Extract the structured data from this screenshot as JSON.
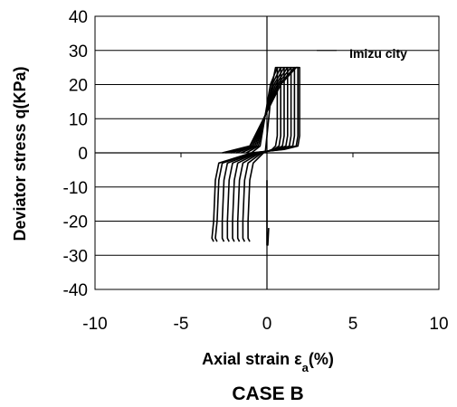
{
  "chart_data": {
    "type": "line",
    "xlabel_main": "Axial strain ε",
    "xlabel_sub": "a",
    "xlabel_tail": "(%)",
    "ylabel": "Deviator stress q(KPa)",
    "xlim": [
      -10,
      10
    ],
    "ylim": [
      -40,
      40
    ],
    "xticks": [
      "-10",
      "-5",
      "0",
      "5",
      "10"
    ],
    "yticks": [
      "40",
      "30",
      "20",
      "10",
      "0",
      "-10",
      "-20",
      "-30",
      "-40"
    ],
    "grid": "horizontal",
    "annotation": "Imizu city",
    "caption": "CASE B",
    "series_color": "#000000",
    "series": [
      {
        "x": [
          -0.1,
          0.0,
          0.3,
          0.5,
          0.6,
          0.6,
          0.6,
          0.5,
          0.3,
          -0.2,
          -0.8,
          -1.0,
          -1.1,
          -1.1,
          -1.0
        ],
        "y": [
          0,
          5,
          20,
          25,
          25,
          20,
          5,
          2,
          1,
          0,
          -3,
          -8,
          -20,
          -25,
          -26
        ]
      },
      {
        "x": [
          -0.9,
          -0.4,
          0.2,
          0.6,
          0.8,
          0.8,
          0.8,
          0.7,
          0.4,
          -0.3,
          -1.1,
          -1.3,
          -1.4,
          -1.4,
          -1.3
        ],
        "y": [
          0,
          2,
          20,
          25,
          25,
          20,
          5,
          2,
          1,
          0,
          -3,
          -8,
          -20,
          -25,
          -26
        ]
      },
      {
        "x": [
          -1.2,
          -0.5,
          0.3,
          0.8,
          1.0,
          1.0,
          1.0,
          0.9,
          0.5,
          -0.4,
          -1.4,
          -1.6,
          -1.7,
          -1.7,
          -1.6
        ],
        "y": [
          0,
          2,
          20,
          25,
          25,
          20,
          5,
          2,
          1,
          0,
          -3,
          -8,
          -20,
          -25,
          -26
        ]
      },
      {
        "x": [
          -1.5,
          -0.6,
          0.4,
          1.0,
          1.2,
          1.2,
          1.2,
          1.1,
          0.6,
          -0.5,
          -1.7,
          -1.9,
          -2.0,
          -2.0,
          -1.9
        ],
        "y": [
          0,
          2,
          20,
          25,
          25,
          20,
          5,
          2,
          1,
          0,
          -3,
          -8,
          -20,
          -25,
          -26
        ]
      },
      {
        "x": [
          -1.8,
          -0.7,
          0.5,
          1.2,
          1.4,
          1.4,
          1.4,
          1.3,
          0.7,
          -0.6,
          -2.0,
          -2.2,
          -2.3,
          -2.3,
          -2.2
        ],
        "y": [
          0,
          2,
          20,
          25,
          25,
          20,
          5,
          2,
          1,
          0,
          -3,
          -8,
          -20,
          -25,
          -26
        ]
      },
      {
        "x": [
          -2.1,
          -0.8,
          0.6,
          1.4,
          1.6,
          1.6,
          1.6,
          1.5,
          0.8,
          -0.7,
          -2.3,
          -2.5,
          -2.6,
          -2.6,
          -2.5
        ],
        "y": [
          0,
          2,
          20,
          25,
          25,
          20,
          5,
          2,
          1,
          0,
          -3,
          -8,
          -20,
          -25,
          -26
        ]
      },
      {
        "x": [
          -2.4,
          -0.9,
          0.7,
          1.6,
          1.8,
          1.8,
          1.8,
          1.7,
          0.9,
          -0.8,
          -2.6,
          -2.8,
          -2.9,
          -3.0,
          -2.9
        ],
        "y": [
          0,
          2,
          20,
          25,
          25,
          20,
          5,
          2,
          1,
          0,
          -3,
          -8,
          -20,
          -25,
          -26
        ]
      },
      {
        "x": [
          -2.6,
          -1.0,
          0.8,
          1.7,
          1.9,
          1.9,
          1.9,
          1.8,
          1.0,
          -0.9,
          -2.8,
          -3.0,
          -3.1,
          -3.2,
          -3.1
        ],
        "y": [
          0,
          2,
          20,
          25,
          25,
          20,
          5,
          2,
          1,
          0,
          -3,
          -8,
          -20,
          -25,
          -26
        ]
      },
      {
        "x": [
          0.0,
          0.0,
          0.05,
          0.1
        ],
        "y": [
          -8,
          -27,
          -27,
          -22
        ]
      }
    ]
  }
}
